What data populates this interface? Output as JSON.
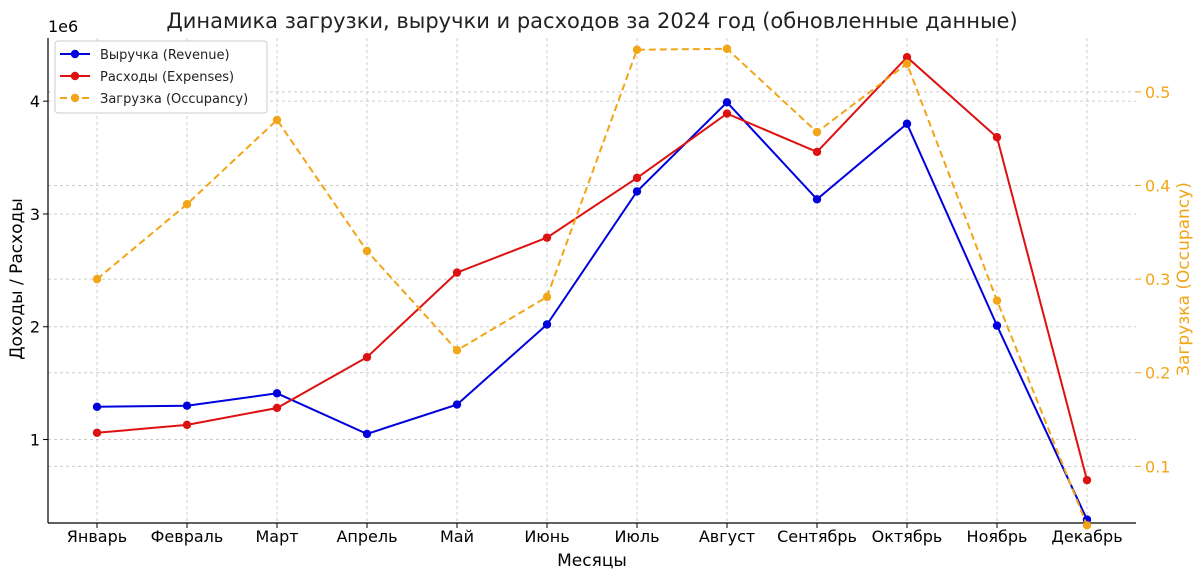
{
  "chart_data": {
    "type": "line",
    "title": "Динамика загрузки, выручки и расходов за 2024 год (обновленные данные)",
    "xlabel": "Месяцы",
    "ylabel": "Доходы / Расходы",
    "ylabel_right": "Загрузка (Occupancy)",
    "y_offset_text": "1e6",
    "categories": [
      "Январь",
      "Февраль",
      "Март",
      "Апрель",
      "Май",
      "Июнь",
      "Июль",
      "Август",
      "Сентябрь",
      "Октябрь",
      "Ноябрь",
      "Декабрь"
    ],
    "ylim": [
      0.26,
      4.56
    ],
    "ylim_right": [
      0.0395,
      0.5575
    ],
    "yticks": [
      1,
      2,
      3,
      4
    ],
    "yticks_right": [
      0.1,
      0.2,
      0.3,
      0.4,
      0.5
    ],
    "grid": true,
    "legend_position": "top-left",
    "series": [
      {
        "name": "Выручка (Revenue)",
        "axis": "left",
        "color": "#0000dd",
        "style": "solid",
        "values": [
          1.29,
          1.3,
          1.41,
          1.05,
          1.31,
          2.02,
          3.2,
          3.99,
          3.13,
          3.8,
          2.01,
          0.29
        ]
      },
      {
        "name": "Расходы (Expenses)",
        "axis": "left",
        "color": "#dd1111",
        "style": "solid",
        "values": [
          1.06,
          1.13,
          1.28,
          1.73,
          2.48,
          2.79,
          3.32,
          3.89,
          3.55,
          4.39,
          3.68,
          0.64
        ]
      },
      {
        "name": "Загрузка (Occupancy)",
        "axis": "right",
        "color": "#f2a516",
        "style": "dashed",
        "values": [
          0.3,
          0.38,
          0.47,
          0.33,
          0.224,
          0.281,
          0.545,
          0.546,
          0.457,
          0.53,
          0.277,
          0.037
        ]
      }
    ]
  }
}
